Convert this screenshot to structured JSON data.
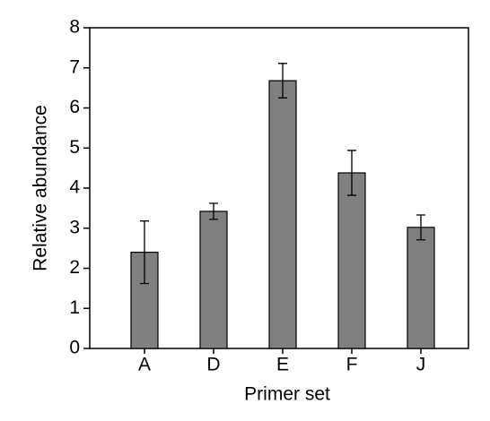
{
  "chart_data": {
    "type": "bar",
    "x_label": "Primer set",
    "y_label": "Relative abundance",
    "categories": [
      "A",
      "D",
      "E",
      "F",
      "J"
    ],
    "values": [
      2.4,
      3.42,
      6.68,
      4.38,
      3.02
    ],
    "errors": [
      0.78,
      0.2,
      0.43,
      0.56,
      0.31
    ],
    "color": "#808080",
    "ylim": [
      0,
      8
    ],
    "yticks": [
      0,
      1,
      2,
      3,
      4,
      5,
      6,
      7,
      8
    ],
    "grid": false
  }
}
